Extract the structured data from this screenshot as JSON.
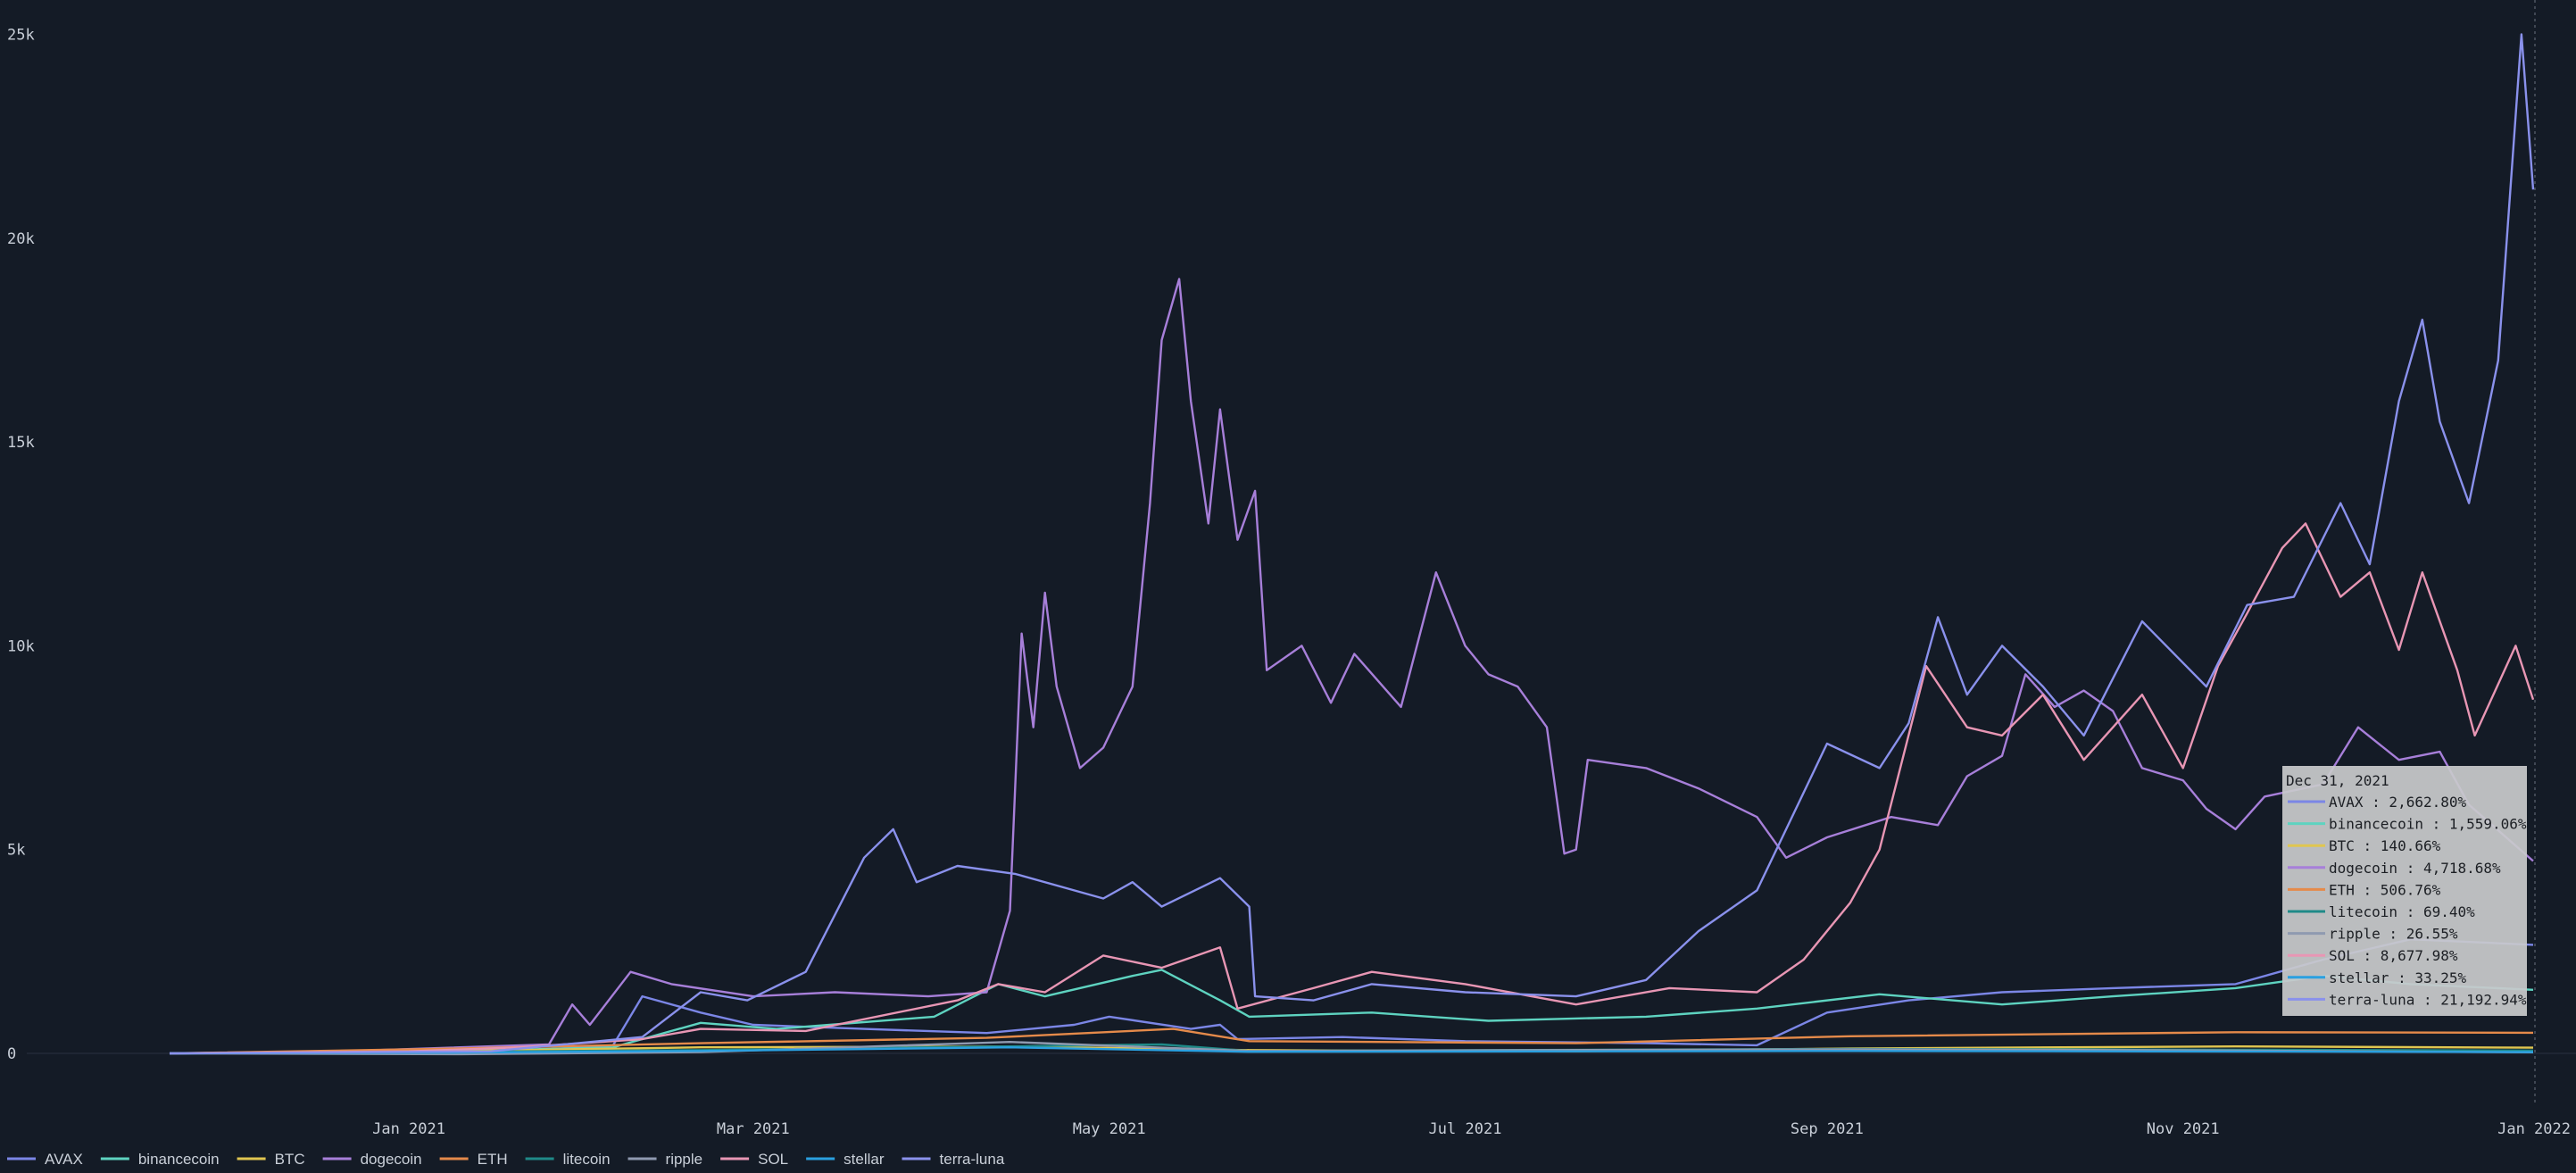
{
  "chart_data": {
    "type": "line",
    "y_unit": "% return",
    "x_range": [
      "2020-11-21",
      "2021-12-31"
    ],
    "ylim": [
      -1500,
      26000
    ],
    "y_ticks": [
      {
        "value": 0,
        "label": "0"
      },
      {
        "value": 5000,
        "label": "5k"
      },
      {
        "value": 10000,
        "label": "10k"
      },
      {
        "value": 15000,
        "label": "15k"
      },
      {
        "value": 20000,
        "label": "20k"
      },
      {
        "value": 25000,
        "label": "25k"
      }
    ],
    "x_ticks": [
      {
        "date": "2021-01-01",
        "label": "Jan 2021"
      },
      {
        "date": "2021-03-01",
        "label": "Mar 2021"
      },
      {
        "date": "2021-05-01",
        "label": "May 2021"
      },
      {
        "date": "2021-07-01",
        "label": "Jul 2021"
      },
      {
        "date": "2021-09-01",
        "label": "Sep 2021"
      },
      {
        "date": "2021-11-01",
        "label": "Nov 2021"
      },
      {
        "date": "2022-01-01",
        "label": "Jan 2022"
      }
    ],
    "grid": false,
    "legend": "bottom-left",
    "series": [
      {
        "name": "AVAX",
        "color": "#7b86e6",
        "points": [
          [
            "2020-11-21",
            0
          ],
          [
            "2020-12-15",
            20
          ],
          [
            "2021-01-20",
            60
          ],
          [
            "2021-02-05",
            200
          ],
          [
            "2021-02-10",
            1400
          ],
          [
            "2021-02-20",
            1000
          ],
          [
            "2021-03-01",
            700
          ],
          [
            "2021-03-20",
            600
          ],
          [
            "2021-04-10",
            500
          ],
          [
            "2021-04-25",
            700
          ],
          [
            "2021-05-01",
            900
          ],
          [
            "2021-05-15",
            600
          ],
          [
            "2021-05-20",
            700
          ],
          [
            "2021-05-23",
            350
          ],
          [
            "2021-06-10",
            400
          ],
          [
            "2021-07-01",
            300
          ],
          [
            "2021-08-01",
            250
          ],
          [
            "2021-08-20",
            200
          ],
          [
            "2021-09-01",
            1000
          ],
          [
            "2021-09-15",
            1300
          ],
          [
            "2021-10-01",
            1500
          ],
          [
            "2021-10-20",
            1600
          ],
          [
            "2021-11-10",
            1700
          ],
          [
            "2021-11-25",
            2300
          ],
          [
            "2021-12-10",
            2800
          ],
          [
            "2021-12-31",
            2662.8
          ]
        ]
      },
      {
        "name": "binancecoin",
        "color": "#5ed3c0",
        "points": [
          [
            "2020-11-21",
            0
          ],
          [
            "2020-12-15",
            30
          ],
          [
            "2021-01-10",
            60
          ],
          [
            "2021-02-05",
            150
          ],
          [
            "2021-02-10",
            350
          ],
          [
            "2021-02-20",
            750
          ],
          [
            "2021-03-05",
            600
          ],
          [
            "2021-04-01",
            900
          ],
          [
            "2021-04-12",
            1700
          ],
          [
            "2021-04-20",
            1400
          ],
          [
            "2021-05-05",
            1900
          ],
          [
            "2021-05-10",
            2050
          ],
          [
            "2021-05-20",
            1300
          ],
          [
            "2021-05-25",
            900
          ],
          [
            "2021-06-15",
            1000
          ],
          [
            "2021-07-05",
            800
          ],
          [
            "2021-08-01",
            900
          ],
          [
            "2021-08-20",
            1100
          ],
          [
            "2021-09-10",
            1450
          ],
          [
            "2021-10-01",
            1200
          ],
          [
            "2021-10-20",
            1400
          ],
          [
            "2021-11-10",
            1600
          ],
          [
            "2021-11-25",
            1900
          ],
          [
            "2021-12-10",
            1700
          ],
          [
            "2021-12-31",
            1559.06
          ]
        ]
      },
      {
        "name": "BTC",
        "color": "#e0c650",
        "points": [
          [
            "2020-11-21",
            0
          ],
          [
            "2021-01-10",
            60
          ],
          [
            "2021-02-20",
            150
          ],
          [
            "2021-04-15",
            170
          ],
          [
            "2021-05-25",
            80
          ],
          [
            "2021-07-20",
            50
          ],
          [
            "2021-09-05",
            120
          ],
          [
            "2021-11-10",
            170
          ],
          [
            "2021-12-31",
            140.66
          ]
        ]
      },
      {
        "name": "dogecoin",
        "color": "#a77fd9",
        "points": [
          [
            "2020-11-21",
            0
          ],
          [
            "2020-12-20",
            50
          ],
          [
            "2021-01-25",
            220
          ],
          [
            "2021-01-29",
            1200
          ],
          [
            "2021-02-01",
            700
          ],
          [
            "2021-02-08",
            2000
          ],
          [
            "2021-02-15",
            1700
          ],
          [
            "2021-03-01",
            1400
          ],
          [
            "2021-03-15",
            1500
          ],
          [
            "2021-03-31",
            1400
          ],
          [
            "2021-04-10",
            1500
          ],
          [
            "2021-04-14",
            3500
          ],
          [
            "2021-04-16",
            10300
          ],
          [
            "2021-04-18",
            8000
          ],
          [
            "2021-04-20",
            11300
          ],
          [
            "2021-04-22",
            9000
          ],
          [
            "2021-04-26",
            7000
          ],
          [
            "2021-04-30",
            7500
          ],
          [
            "2021-05-05",
            9000
          ],
          [
            "2021-05-08",
            13500
          ],
          [
            "2021-05-10",
            17500
          ],
          [
            "2021-05-13",
            19000
          ],
          [
            "2021-05-15",
            16000
          ],
          [
            "2021-05-18",
            13000
          ],
          [
            "2021-05-20",
            15800
          ],
          [
            "2021-05-23",
            12600
          ],
          [
            "2021-05-26",
            13800
          ],
          [
            "2021-05-28",
            9400
          ],
          [
            "2021-06-03",
            10000
          ],
          [
            "2021-06-08",
            8600
          ],
          [
            "2021-06-12",
            9800
          ],
          [
            "2021-06-20",
            8500
          ],
          [
            "2021-06-26",
            11800
          ],
          [
            "2021-07-01",
            10000
          ],
          [
            "2021-07-05",
            9300
          ],
          [
            "2021-07-10",
            9000
          ],
          [
            "2021-07-15",
            8000
          ],
          [
            "2021-07-18",
            4900
          ],
          [
            "2021-07-20",
            5000
          ],
          [
            "2021-07-22",
            7200
          ],
          [
            "2021-08-01",
            7000
          ],
          [
            "2021-08-10",
            6500
          ],
          [
            "2021-08-20",
            5800
          ],
          [
            "2021-08-25",
            4800
          ],
          [
            "2021-09-01",
            5300
          ],
          [
            "2021-09-12",
            5800
          ],
          [
            "2021-09-20",
            5600
          ],
          [
            "2021-09-25",
            6800
          ],
          [
            "2021-10-01",
            7300
          ],
          [
            "2021-10-05",
            9300
          ],
          [
            "2021-10-10",
            8500
          ],
          [
            "2021-10-15",
            8900
          ],
          [
            "2021-10-20",
            8400
          ],
          [
            "2021-10-25",
            7000
          ],
          [
            "2021-11-01",
            6700
          ],
          [
            "2021-11-05",
            6000
          ],
          [
            "2021-11-10",
            5500
          ],
          [
            "2021-11-15",
            6300
          ],
          [
            "2021-11-25",
            6600
          ],
          [
            "2021-12-01",
            8000
          ],
          [
            "2021-12-08",
            7200
          ],
          [
            "2021-12-15",
            7400
          ],
          [
            "2021-12-20",
            6100
          ],
          [
            "2021-12-31",
            4718.68
          ]
        ]
      },
      {
        "name": "ETH",
        "color": "#e58a4a",
        "points": [
          [
            "2020-11-21",
            0
          ],
          [
            "2021-01-10",
            120
          ],
          [
            "2021-02-20",
            250
          ],
          [
            "2021-04-10",
            380
          ],
          [
            "2021-05-12",
            600
          ],
          [
            "2021-05-25",
            300
          ],
          [
            "2021-07-20",
            250
          ],
          [
            "2021-09-05",
            420
          ],
          [
            "2021-11-10",
            520
          ],
          [
            "2021-12-31",
            506.76
          ]
        ]
      },
      {
        "name": "litecoin",
        "color": "#1f8a88",
        "points": [
          [
            "2020-11-21",
            0
          ],
          [
            "2021-01-10",
            40
          ],
          [
            "2021-02-20",
            80
          ],
          [
            "2021-05-10",
            220
          ],
          [
            "2021-05-25",
            60
          ],
          [
            "2021-09-05",
            110
          ],
          [
            "2021-11-10",
            90
          ],
          [
            "2021-12-31",
            69.4
          ]
        ]
      },
      {
        "name": "ripple",
        "color": "#8f9ab0",
        "points": [
          [
            "2020-11-21",
            0
          ],
          [
            "2021-01-10",
            -20
          ],
          [
            "2021-02-20",
            30
          ],
          [
            "2021-04-14",
            280
          ],
          [
            "2021-05-25",
            60
          ],
          [
            "2021-09-05",
            100
          ],
          [
            "2021-11-10",
            70
          ],
          [
            "2021-12-31",
            26.55
          ]
        ]
      },
      {
        "name": "SOL",
        "color": "#e896b4",
        "points": [
          [
            "2020-11-21",
            0
          ],
          [
            "2021-01-01",
            50
          ],
          [
            "2021-01-20",
            150
          ],
          [
            "2021-02-10",
            350
          ],
          [
            "2021-02-20",
            600
          ],
          [
            "2021-03-10",
            550
          ],
          [
            "2021-04-05",
            1300
          ],
          [
            "2021-04-12",
            1700
          ],
          [
            "2021-04-20",
            1500
          ],
          [
            "2021-04-30",
            2400
          ],
          [
            "2021-05-10",
            2100
          ],
          [
            "2021-05-20",
            2600
          ],
          [
            "2021-05-23",
            1100
          ],
          [
            "2021-06-05",
            1600
          ],
          [
            "2021-06-15",
            2000
          ],
          [
            "2021-07-01",
            1700
          ],
          [
            "2021-07-20",
            1200
          ],
          [
            "2021-08-05",
            1600
          ],
          [
            "2021-08-20",
            1500
          ],
          [
            "2021-08-28",
            2300
          ],
          [
            "2021-09-05",
            3700
          ],
          [
            "2021-09-10",
            5000
          ],
          [
            "2021-09-18",
            9500
          ],
          [
            "2021-09-25",
            8000
          ],
          [
            "2021-10-01",
            7800
          ],
          [
            "2021-10-08",
            8800
          ],
          [
            "2021-10-15",
            7200
          ],
          [
            "2021-10-25",
            8800
          ],
          [
            "2021-11-01",
            7000
          ],
          [
            "2021-11-07",
            9500
          ],
          [
            "2021-11-12",
            10800
          ],
          [
            "2021-11-18",
            12400
          ],
          [
            "2021-11-22",
            13000
          ],
          [
            "2021-11-28",
            11200
          ],
          [
            "2021-12-03",
            11800
          ],
          [
            "2021-12-08",
            9900
          ],
          [
            "2021-12-12",
            11800
          ],
          [
            "2021-12-18",
            9400
          ],
          [
            "2021-12-21",
            7800
          ],
          [
            "2021-12-28",
            10000
          ],
          [
            "2021-12-31",
            8677.98
          ]
        ]
      },
      {
        "name": "stellar",
        "color": "#2aa0e0",
        "points": [
          [
            "2020-11-21",
            0
          ],
          [
            "2021-01-10",
            20
          ],
          [
            "2021-02-20",
            60
          ],
          [
            "2021-04-14",
            150
          ],
          [
            "2021-05-25",
            40
          ],
          [
            "2021-09-05",
            60
          ],
          [
            "2021-11-10",
            45
          ],
          [
            "2021-12-31",
            33.25
          ]
        ]
      },
      {
        "name": "terra-luna",
        "color": "#8a91ec",
        "points": [
          [
            "2020-11-21",
            0
          ],
          [
            "2021-01-15",
            50
          ],
          [
            "2021-02-10",
            400
          ],
          [
            "2021-02-20",
            1500
          ],
          [
            "2021-02-28",
            1300
          ],
          [
            "2021-03-10",
            2000
          ],
          [
            "2021-03-20",
            4800
          ],
          [
            "2021-03-25",
            5500
          ],
          [
            "2021-03-29",
            4200
          ],
          [
            "2021-04-05",
            4600
          ],
          [
            "2021-04-15",
            4400
          ],
          [
            "2021-04-25",
            4000
          ],
          [
            "2021-04-30",
            3800
          ],
          [
            "2021-05-05",
            4200
          ],
          [
            "2021-05-10",
            3600
          ],
          [
            "2021-05-20",
            4300
          ],
          [
            "2021-05-25",
            3600
          ],
          [
            "2021-05-26",
            1400
          ],
          [
            "2021-06-05",
            1300
          ],
          [
            "2021-06-15",
            1700
          ],
          [
            "2021-07-01",
            1500
          ],
          [
            "2021-07-20",
            1400
          ],
          [
            "2021-08-01",
            1800
          ],
          [
            "2021-08-10",
            3000
          ],
          [
            "2021-08-20",
            4000
          ],
          [
            "2021-09-01",
            7600
          ],
          [
            "2021-09-10",
            7000
          ],
          [
            "2021-09-15",
            8100
          ],
          [
            "2021-09-20",
            10700
          ],
          [
            "2021-09-25",
            8800
          ],
          [
            "2021-10-01",
            10000
          ],
          [
            "2021-10-08",
            9000
          ],
          [
            "2021-10-15",
            7800
          ],
          [
            "2021-10-25",
            10600
          ],
          [
            "2021-11-05",
            9000
          ],
          [
            "2021-11-12",
            11000
          ],
          [
            "2021-11-20",
            11200
          ],
          [
            "2021-11-28",
            13500
          ],
          [
            "2021-12-03",
            12000
          ],
          [
            "2021-12-08",
            16000
          ],
          [
            "2021-12-12",
            18000
          ],
          [
            "2021-12-15",
            15500
          ],
          [
            "2021-12-20",
            13500
          ],
          [
            "2021-12-25",
            17000
          ],
          [
            "2021-12-29",
            25000
          ],
          [
            "2021-12-31",
            21192.94
          ]
        ]
      }
    ],
    "tooltip": {
      "title": "Dec 31, 2021",
      "rows": [
        {
          "name": "AVAX",
          "value": "2,662.80%"
        },
        {
          "name": "binancecoin",
          "value": "1,559.06%"
        },
        {
          "name": "BTC",
          "value": "140.66%"
        },
        {
          "name": "dogecoin",
          "value": "4,718.68%"
        },
        {
          "name": "ETH",
          "value": "506.76%"
        },
        {
          "name": "litecoin",
          "value": "69.40%"
        },
        {
          "name": "ripple",
          "value": "26.55%"
        },
        {
          "name": "SOL",
          "value": "8,677.98%"
        },
        {
          "name": "stellar",
          "value": "33.25%"
        },
        {
          "name": "terra-luna",
          "value": "21,192.94%"
        }
      ]
    }
  }
}
